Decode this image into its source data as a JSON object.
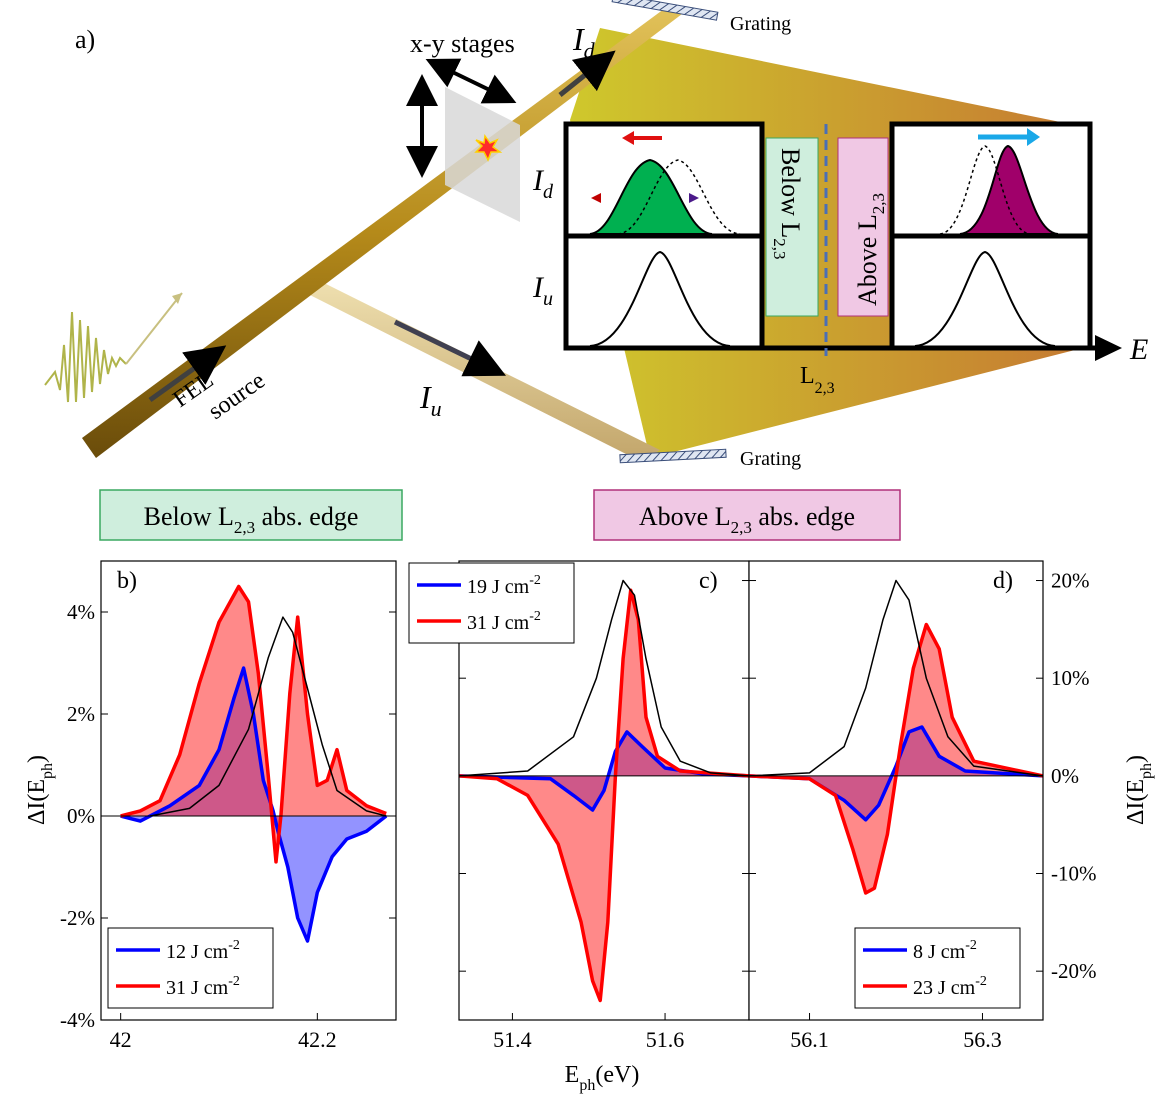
{
  "panel_a": {
    "label": "a)",
    "stages_label": "x-y stages",
    "grating_top": "Grating",
    "grating_bottom": "Grating",
    "Id_main": "I",
    "Id_sub": "d",
    "Iu_main": "I",
    "Iu_sub": "u",
    "fel_line1": "FEL",
    "fel_line2": "source",
    "energy_axis": "E",
    "edge_main": "L",
    "edge_sub": "2,3",
    "below_box": "Below L",
    "below_sub": "2,3",
    "above_box": "Above L",
    "above_sub": "2,3",
    "colors": {
      "below_fill": "#00b050",
      "above_fill": "#a0006a",
      "below_bg": "#cfeedd",
      "above_bg": "#f0c8e4",
      "fan_left": "#c9c225",
      "fan_right": "#c87a30",
      "rod": "#b08818"
    }
  },
  "labels": {
    "below_main": "Below L",
    "below_sub": "2,3",
    "below_tail": " abs. edge",
    "above_main": "Above L",
    "above_sub": "2,3",
    "above_tail": " abs. edge"
  },
  "chart_data": [
    {
      "panel": "b)",
      "type": "area",
      "xlim": [
        41.98,
        42.28
      ],
      "xticks": [
        42,
        42.2
      ],
      "ylim": [
        -4,
        5
      ],
      "yticks": [
        "4%",
        "2%",
        "0%",
        "-2%",
        "-4%"
      ],
      "ytick_values": [
        4,
        2,
        0,
        -2,
        -4
      ],
      "ylabel_main": "ΔI(E",
      "ylabel_sub": "ph",
      "ylabel_tail": ")",
      "legend": [
        {
          "name": "12 J cm",
          "sup": "-2",
          "color": "#0000ff"
        },
        {
          "name": "31 J cm",
          "sup": "-2",
          "color": "#ff0000"
        }
      ],
      "series": [
        {
          "name": "12 J cm-2",
          "color": "#0000ff",
          "points": [
            [
              42.0,
              0
            ],
            [
              42.02,
              -0.1
            ],
            [
              42.05,
              0.2
            ],
            [
              42.08,
              0.6
            ],
            [
              42.1,
              1.3
            ],
            [
              42.115,
              2.3
            ],
            [
              42.125,
              2.9
            ],
            [
              42.135,
              2.0
            ],
            [
              42.145,
              0.7
            ],
            [
              42.155,
              0.1
            ],
            [
              42.16,
              -0.3
            ],
            [
              42.17,
              -1.0
            ],
            [
              42.18,
              -2.0
            ],
            [
              42.19,
              -2.45
            ],
            [
              42.2,
              -1.5
            ],
            [
              42.215,
              -0.8
            ],
            [
              42.23,
              -0.45
            ],
            [
              42.25,
              -0.3
            ],
            [
              42.27,
              0.0
            ]
          ]
        },
        {
          "name": "31 J cm-2",
          "color": "#ff0000",
          "points": [
            [
              42.0,
              0
            ],
            [
              42.02,
              0.1
            ],
            [
              42.04,
              0.3
            ],
            [
              42.06,
              1.2
            ],
            [
              42.08,
              2.6
            ],
            [
              42.1,
              3.8
            ],
            [
              42.12,
              4.5
            ],
            [
              42.13,
              4.2
            ],
            [
              42.14,
              2.8
            ],
            [
              42.15,
              0.8
            ],
            [
              42.158,
              -0.9
            ],
            [
              42.163,
              0.0
            ],
            [
              42.172,
              2.4
            ],
            [
              42.18,
              3.9
            ],
            [
              42.19,
              2.0
            ],
            [
              42.2,
              0.6
            ],
            [
              42.21,
              0.7
            ],
            [
              42.22,
              1.3
            ],
            [
              42.23,
              0.5
            ],
            [
              42.25,
              0.2
            ],
            [
              42.27,
              0.05
            ]
          ]
        },
        {
          "name": "reference",
          "color": "#000000",
          "points": [
            [
              42.03,
              0.0
            ],
            [
              42.07,
              0.15
            ],
            [
              42.1,
              0.6
            ],
            [
              42.13,
              1.7
            ],
            [
              42.15,
              3.1
            ],
            [
              42.165,
              3.9
            ],
            [
              42.175,
              3.6
            ],
            [
              42.19,
              2.5
            ],
            [
              42.205,
              1.4
            ],
            [
              42.22,
              0.5
            ],
            [
              42.25,
              0.1
            ],
            [
              42.27,
              0.0
            ]
          ]
        }
      ]
    },
    {
      "panel": "c)",
      "type": "area",
      "xlim": [
        51.33,
        51.71
      ],
      "xticks": [
        51.4,
        51.6
      ],
      "ylim": [
        -25,
        22
      ],
      "ytick_values": [
        20,
        10,
        0,
        -10,
        -20
      ],
      "legend": [
        {
          "name": "19 J cm",
          "sup": "-2",
          "color": "#0000ff"
        },
        {
          "name": "31 J cm",
          "sup": "-2",
          "color": "#ff0000"
        }
      ],
      "series": [
        {
          "name": "19 J cm-2",
          "color": "#0000ff",
          "points": [
            [
              51.33,
              0
            ],
            [
              51.45,
              -0.3
            ],
            [
              51.48,
              -2.0
            ],
            [
              51.505,
              -3.5
            ],
            [
              51.52,
              -1.5
            ],
            [
              51.535,
              2.5
            ],
            [
              51.55,
              4.5
            ],
            [
              51.57,
              3.0
            ],
            [
              51.6,
              0.8
            ],
            [
              51.65,
              0.2
            ],
            [
              51.71,
              0.0
            ]
          ]
        },
        {
          "name": "31 J cm-2",
          "color": "#ff0000",
          "points": [
            [
              51.33,
              0
            ],
            [
              51.38,
              -0.3
            ],
            [
              51.42,
              -2.0
            ],
            [
              51.46,
              -7.0
            ],
            [
              51.49,
              -15
            ],
            [
              51.505,
              -21
            ],
            [
              51.515,
              -23
            ],
            [
              51.525,
              -15
            ],
            [
              51.535,
              0
            ],
            [
              51.545,
              12
            ],
            [
              51.555,
              19
            ],
            [
              51.565,
              16
            ],
            [
              51.575,
              6
            ],
            [
              51.59,
              2
            ],
            [
              51.62,
              0.5
            ],
            [
              51.71,
              0.0
            ]
          ]
        },
        {
          "name": "reference",
          "color": "#000000",
          "points": [
            [
              51.33,
              0
            ],
            [
              51.42,
              0.5
            ],
            [
              51.48,
              4.0
            ],
            [
              51.51,
              10
            ],
            [
              51.53,
              16
            ],
            [
              51.545,
              20
            ],
            [
              51.56,
              18.5
            ],
            [
              51.575,
              12
            ],
            [
              51.595,
              5
            ],
            [
              51.62,
              1.5
            ],
            [
              51.66,
              0.3
            ],
            [
              51.71,
              0.0
            ]
          ]
        }
      ]
    },
    {
      "panel": "d)",
      "type": "area",
      "xlim": [
        56.03,
        56.37
      ],
      "xticks": [
        56.1,
        56.3
      ],
      "ylim": [
        -25,
        22
      ],
      "yticks": [
        "20%",
        "10%",
        "0%",
        "-10%",
        "-20%"
      ],
      "ytick_values": [
        20,
        10,
        0,
        -10,
        -20
      ],
      "ylabel_main": "ΔI(E",
      "ylabel_sub": "ph",
      "ylabel_tail": ")",
      "xlabel_main": "E",
      "xlabel_sub": "ph",
      "xlabel_tail": "(eV)",
      "legend": [
        {
          "name": "8 J cm",
          "sup": "-2",
          "color": "#0000ff"
        },
        {
          "name": "23 J cm",
          "sup": "-2",
          "color": "#ff0000"
        }
      ],
      "series": [
        {
          "name": "8 J cm-2",
          "color": "#0000ff",
          "points": [
            [
              56.03,
              0
            ],
            [
              56.1,
              -0.3
            ],
            [
              56.14,
              -2.5
            ],
            [
              56.165,
              -4.5
            ],
            [
              56.18,
              -3.0
            ],
            [
              56.2,
              1.0
            ],
            [
              56.215,
              4.5
            ],
            [
              56.23,
              5.0
            ],
            [
              56.25,
              2.0
            ],
            [
              56.28,
              0.5
            ],
            [
              56.37,
              0.0
            ]
          ]
        },
        {
          "name": "23 J cm-2",
          "color": "#ff0000",
          "points": [
            [
              56.03,
              0
            ],
            [
              56.1,
              -0.3
            ],
            [
              56.13,
              -2.0
            ],
            [
              56.15,
              -7.5
            ],
            [
              56.165,
              -12
            ],
            [
              56.175,
              -11.5
            ],
            [
              56.19,
              -6
            ],
            [
              56.205,
              3
            ],
            [
              56.22,
              11
            ],
            [
              56.235,
              15.5
            ],
            [
              56.25,
              13
            ],
            [
              56.265,
              6
            ],
            [
              56.29,
              1.5
            ],
            [
              56.37,
              0.0
            ]
          ]
        },
        {
          "name": "reference",
          "color": "#000000",
          "points": [
            [
              56.03,
              0
            ],
            [
              56.1,
              0.3
            ],
            [
              56.14,
              3.0
            ],
            [
              56.165,
              9
            ],
            [
              56.185,
              16
            ],
            [
              56.2,
              20
            ],
            [
              56.215,
              18
            ],
            [
              56.235,
              10
            ],
            [
              56.26,
              4
            ],
            [
              56.29,
              1.0
            ],
            [
              56.37,
              0.0
            ]
          ]
        }
      ]
    }
  ]
}
